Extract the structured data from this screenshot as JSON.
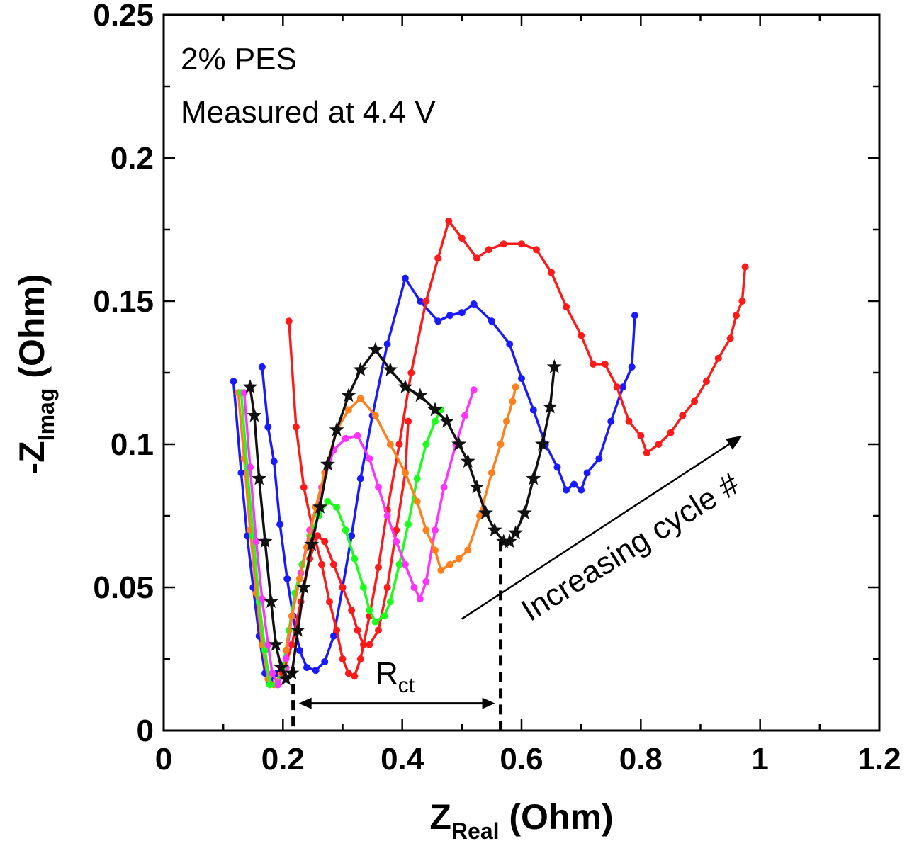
{
  "chart_data": {
    "type": "line",
    "title": "",
    "xlabel": {
      "main": "Z",
      "sub": "Real",
      "unit": " (Ohm)"
    },
    "ylabel": {
      "main": "-Z",
      "sub": "Imag",
      "unit": " (Ohm)"
    },
    "xlim": [
      0,
      1.2
    ],
    "ylim": [
      0,
      0.25
    ],
    "xticks": [
      0,
      0.2,
      0.4,
      0.6,
      0.8,
      1,
      1.2
    ],
    "xtick_labels": [
      "0",
      "0.2",
      "0.4",
      "0.6",
      "0.8",
      "1",
      "1.2"
    ],
    "yticks": [
      0,
      0.05,
      0.1,
      0.15,
      0.2,
      0.25
    ],
    "ytick_labels": [
      "0",
      "0.05",
      "0.1",
      "0.15",
      "0.2",
      "0.25"
    ],
    "grid": false,
    "annotations": {
      "sample_text": "2% PES",
      "condition_text": "Measured at 4.4 V",
      "rct_main": "R",
      "rct_sub": "ct",
      "trend_text": "Increasing cycle #",
      "rct_left_x": 0.217,
      "rct_right_x": 0.565,
      "rct_y": 0.0095,
      "trend_arrow": {
        "from": [
          0.5,
          0.039
        ],
        "to": [
          0.97,
          0.103
        ]
      }
    },
    "series": [
      {
        "name": "blue-1",
        "color": "#1a1aff",
        "marker": "dot",
        "points": [
          [
            0.117,
            0.122
          ],
          [
            0.13,
            0.09
          ],
          [
            0.14,
            0.068
          ],
          [
            0.15,
            0.05
          ],
          [
            0.16,
            0.033
          ],
          [
            0.17,
            0.02
          ],
          [
            0.178,
            0.017
          ],
          [
            0.19,
            0.02
          ]
        ]
      },
      {
        "name": "orange-1",
        "color": "#ff7f1a",
        "marker": "dot",
        "points": [
          [
            0.125,
            0.118
          ],
          [
            0.135,
            0.095
          ],
          [
            0.145,
            0.07
          ],
          [
            0.155,
            0.048
          ],
          [
            0.165,
            0.03
          ],
          [
            0.175,
            0.018
          ],
          [
            0.185,
            0.016
          ],
          [
            0.197,
            0.02
          ]
        ]
      },
      {
        "name": "green-1",
        "color": "#1aff1a",
        "marker": "dot",
        "points": [
          [
            0.13,
            0.118
          ],
          [
            0.14,
            0.092
          ],
          [
            0.15,
            0.068
          ],
          [
            0.16,
            0.045
          ],
          [
            0.17,
            0.028
          ],
          [
            0.178,
            0.016
          ],
          [
            0.19,
            0.016
          ],
          [
            0.2,
            0.021
          ]
        ]
      },
      {
        "name": "magenta-1",
        "color": "#ff33ff",
        "marker": "dot",
        "points": [
          [
            0.135,
            0.118
          ],
          [
            0.145,
            0.092
          ],
          [
            0.155,
            0.066
          ],
          [
            0.165,
            0.046
          ],
          [
            0.175,
            0.03
          ],
          [
            0.182,
            0.02
          ],
          [
            0.192,
            0.016
          ],
          [
            0.205,
            0.022
          ]
        ]
      },
      {
        "name": "blue-2",
        "color": "#1a1aff",
        "marker": "dot",
        "points": [
          [
            0.165,
            0.127
          ],
          [
            0.175,
            0.106
          ],
          [
            0.185,
            0.094
          ],
          [
            0.195,
            0.072
          ],
          [
            0.207,
            0.053
          ],
          [
            0.217,
            0.04
          ],
          [
            0.228,
            0.028
          ],
          [
            0.24,
            0.022
          ],
          [
            0.255,
            0.021
          ],
          [
            0.27,
            0.024
          ],
          [
            0.285,
            0.033
          ],
          [
            0.3,
            0.05
          ],
          [
            0.315,
            0.068
          ],
          [
            0.33,
            0.088
          ],
          [
            0.35,
            0.11
          ],
          [
            0.375,
            0.135
          ],
          [
            0.405,
            0.158
          ],
          [
            0.43,
            0.15
          ],
          [
            0.46,
            0.143
          ],
          [
            0.48,
            0.145
          ],
          [
            0.5,
            0.146
          ],
          [
            0.52,
            0.149
          ],
          [
            0.55,
            0.143
          ],
          [
            0.58,
            0.135
          ],
          [
            0.6,
            0.123
          ],
          [
            0.62,
            0.112
          ],
          [
            0.64,
            0.1
          ],
          [
            0.66,
            0.092
          ],
          [
            0.675,
            0.084
          ],
          [
            0.688,
            0.086
          ],
          [
            0.7,
            0.084
          ],
          [
            0.71,
            0.09
          ],
          [
            0.73,
            0.095
          ],
          [
            0.75,
            0.108
          ],
          [
            0.77,
            0.12
          ],
          [
            0.785,
            0.127
          ],
          [
            0.79,
            0.145
          ]
        ]
      },
      {
        "name": "red-1",
        "color": "#ff1a1a",
        "marker": "dot",
        "points": [
          [
            0.21,
            0.143
          ],
          [
            0.222,
            0.106
          ],
          [
            0.235,
            0.085
          ],
          [
            0.25,
            0.07
          ],
          [
            0.265,
            0.058
          ],
          [
            0.278,
            0.045
          ],
          [
            0.29,
            0.035
          ],
          [
            0.3,
            0.025
          ],
          [
            0.31,
            0.02
          ],
          [
            0.32,
            0.019
          ],
          [
            0.33,
            0.025
          ],
          [
            0.345,
            0.04
          ],
          [
            0.36,
            0.057
          ],
          [
            0.375,
            0.077
          ],
          [
            0.395,
            0.1
          ],
          [
            0.415,
            0.125
          ],
          [
            0.44,
            0.15
          ],
          [
            0.46,
            0.165
          ],
          [
            0.478,
            0.178
          ],
          [
            0.5,
            0.172
          ],
          [
            0.525,
            0.165
          ],
          [
            0.545,
            0.168
          ],
          [
            0.57,
            0.17
          ],
          [
            0.6,
            0.17
          ],
          [
            0.625,
            0.168
          ],
          [
            0.65,
            0.16
          ],
          [
            0.675,
            0.148
          ],
          [
            0.7,
            0.138
          ],
          [
            0.72,
            0.128
          ],
          [
            0.74,
            0.128
          ],
          [
            0.76,
            0.12
          ],
          [
            0.78,
            0.108
          ],
          [
            0.8,
            0.103
          ],
          [
            0.81,
            0.097
          ],
          [
            0.83,
            0.1
          ],
          [
            0.85,
            0.104
          ],
          [
            0.87,
            0.11
          ],
          [
            0.89,
            0.115
          ],
          [
            0.91,
            0.122
          ],
          [
            0.93,
            0.13
          ],
          [
            0.95,
            0.137
          ],
          [
            0.96,
            0.145
          ],
          [
            0.97,
            0.15
          ],
          [
            0.975,
            0.162
          ]
        ]
      },
      {
        "name": "red-2",
        "color": "#ff1a1a",
        "marker": "dot",
        "points": [
          [
            0.2,
            0.02
          ],
          [
            0.215,
            0.03
          ],
          [
            0.23,
            0.045
          ],
          [
            0.245,
            0.06
          ],
          [
            0.258,
            0.068
          ],
          [
            0.27,
            0.066
          ],
          [
            0.285,
            0.058
          ],
          [
            0.3,
            0.05
          ],
          [
            0.315,
            0.042
          ],
          [
            0.325,
            0.035
          ],
          [
            0.335,
            0.03
          ],
          [
            0.345,
            0.03
          ],
          [
            0.36,
            0.035
          ],
          [
            0.375,
            0.05
          ],
          [
            0.39,
            0.07
          ],
          [
            0.405,
            0.09
          ],
          [
            0.41,
            0.108
          ]
        ]
      },
      {
        "name": "green-2",
        "color": "#1aff1a",
        "marker": "dot",
        "points": [
          [
            0.2,
            0.022
          ],
          [
            0.21,
            0.035
          ],
          [
            0.22,
            0.048
          ],
          [
            0.232,
            0.058
          ],
          [
            0.245,
            0.068
          ],
          [
            0.26,
            0.075
          ],
          [
            0.275,
            0.08
          ],
          [
            0.29,
            0.078
          ],
          [
            0.305,
            0.07
          ],
          [
            0.32,
            0.06
          ],
          [
            0.335,
            0.05
          ],
          [
            0.345,
            0.042
          ],
          [
            0.355,
            0.038
          ],
          [
            0.37,
            0.04
          ],
          [
            0.38,
            0.045
          ],
          [
            0.395,
            0.058
          ],
          [
            0.41,
            0.072
          ],
          [
            0.425,
            0.088
          ],
          [
            0.44,
            0.1
          ],
          [
            0.455,
            0.108
          ],
          [
            0.465,
            0.112
          ]
        ]
      },
      {
        "name": "magenta-2",
        "color": "#ff33ff",
        "marker": "dot",
        "points": [
          [
            0.205,
            0.025
          ],
          [
            0.215,
            0.04
          ],
          [
            0.23,
            0.055
          ],
          [
            0.245,
            0.07
          ],
          [
            0.265,
            0.085
          ],
          [
            0.285,
            0.098
          ],
          [
            0.305,
            0.102
          ],
          [
            0.325,
            0.103
          ],
          [
            0.345,
            0.095
          ],
          [
            0.36,
            0.085
          ],
          [
            0.375,
            0.075
          ],
          [
            0.39,
            0.066
          ],
          [
            0.405,
            0.058
          ],
          [
            0.42,
            0.05
          ],
          [
            0.43,
            0.046
          ],
          [
            0.44,
            0.052
          ],
          [
            0.455,
            0.07
          ],
          [
            0.47,
            0.085
          ],
          [
            0.49,
            0.1
          ],
          [
            0.505,
            0.11
          ],
          [
            0.52,
            0.119
          ]
        ]
      },
      {
        "name": "orange-2",
        "color": "#ff7f1a",
        "marker": "dot",
        "points": [
          [
            0.205,
            0.028
          ],
          [
            0.215,
            0.04
          ],
          [
            0.228,
            0.053
          ],
          [
            0.24,
            0.064
          ],
          [
            0.255,
            0.078
          ],
          [
            0.27,
            0.09
          ],
          [
            0.29,
            0.105
          ],
          [
            0.31,
            0.112
          ],
          [
            0.33,
            0.116
          ],
          [
            0.355,
            0.11
          ],
          [
            0.38,
            0.1
          ],
          [
            0.405,
            0.09
          ],
          [
            0.425,
            0.08
          ],
          [
            0.44,
            0.07
          ],
          [
            0.455,
            0.063
          ],
          [
            0.465,
            0.056
          ],
          [
            0.48,
            0.058
          ],
          [
            0.495,
            0.06
          ],
          [
            0.51,
            0.063
          ],
          [
            0.53,
            0.075
          ],
          [
            0.55,
            0.09
          ],
          [
            0.565,
            0.1
          ],
          [
            0.575,
            0.108
          ],
          [
            0.585,
            0.115
          ],
          [
            0.59,
            0.12
          ]
        ]
      },
      {
        "name": "black-stars",
        "color": "#111111",
        "marker": "star",
        "points": [
          [
            0.145,
            0.12
          ],
          [
            0.152,
            0.11
          ],
          [
            0.16,
            0.088
          ],
          [
            0.17,
            0.066
          ],
          [
            0.18,
            0.045
          ],
          [
            0.188,
            0.03
          ],
          [
            0.197,
            0.022
          ],
          [
            0.205,
            0.018
          ],
          [
            0.215,
            0.02
          ],
          [
            0.225,
            0.035
          ],
          [
            0.235,
            0.05
          ],
          [
            0.248,
            0.065
          ],
          [
            0.262,
            0.078
          ],
          [
            0.275,
            0.093
          ],
          [
            0.29,
            0.105
          ],
          [
            0.31,
            0.117
          ],
          [
            0.33,
            0.126
          ],
          [
            0.355,
            0.133
          ],
          [
            0.38,
            0.126
          ],
          [
            0.405,
            0.12
          ],
          [
            0.43,
            0.117
          ],
          [
            0.455,
            0.112
          ],
          [
            0.475,
            0.108
          ],
          [
            0.495,
            0.1
          ],
          [
            0.51,
            0.094
          ],
          [
            0.525,
            0.085
          ],
          [
            0.54,
            0.076
          ],
          [
            0.555,
            0.07
          ],
          [
            0.57,
            0.066
          ],
          [
            0.58,
            0.066
          ],
          [
            0.59,
            0.069
          ],
          [
            0.605,
            0.076
          ],
          [
            0.62,
            0.088
          ],
          [
            0.635,
            0.1
          ],
          [
            0.648,
            0.113
          ],
          [
            0.655,
            0.127
          ]
        ]
      }
    ]
  }
}
